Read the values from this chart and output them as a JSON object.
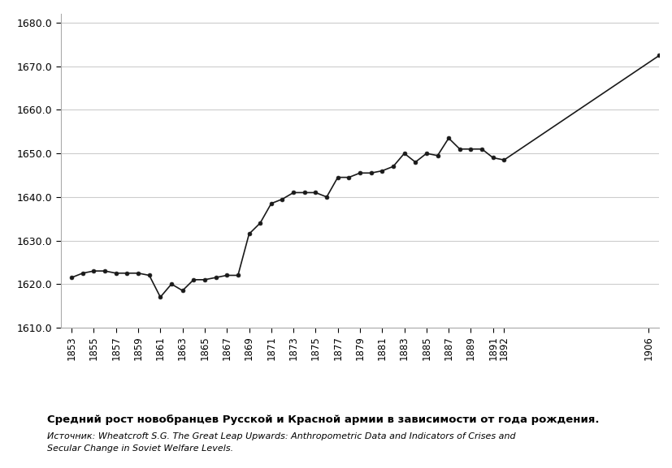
{
  "years": [
    1853,
    1854,
    1855,
    1856,
    1857,
    1858,
    1859,
    1860,
    1861,
    1862,
    1863,
    1864,
    1865,
    1866,
    1867,
    1868,
    1869,
    1870,
    1871,
    1872,
    1873,
    1874,
    1875,
    1876,
    1877,
    1878,
    1879,
    1880,
    1881,
    1882,
    1883,
    1884,
    1885,
    1886,
    1887,
    1888,
    1889,
    1890,
    1891,
    1892,
    1906
  ],
  "heights": [
    1621.5,
    1622.5,
    1623.0,
    1623.0,
    1622.5,
    1622.5,
    1622.5,
    1622.0,
    1617.0,
    1620.0,
    1618.5,
    1621.0,
    1621.0,
    1621.5,
    1622.0,
    1622.0,
    1631.5,
    1634.0,
    1638.5,
    1639.5,
    1641.0,
    1641.0,
    1641.0,
    1640.0,
    1644.5,
    1644.5,
    1645.5,
    1645.5,
    1646.0,
    1647.0,
    1650.0,
    1648.0,
    1650.0,
    1649.5,
    1653.5,
    1651.0,
    1651.0,
    1651.0,
    1649.0,
    1648.5,
    1672.5
  ],
  "xtick_labels": [
    "1853",
    "1855",
    "1857",
    "1859",
    "1861",
    "1863",
    "1865",
    "1867",
    "1869",
    "1871",
    "1873",
    "1875",
    "1877",
    "1879",
    "1881",
    "1883",
    "1885",
    "1887",
    "1889",
    "1891",
    "1892",
    "1906"
  ],
  "xtick_positions": [
    0,
    2,
    4,
    6,
    8,
    10,
    12,
    14,
    16,
    18,
    20,
    22,
    24,
    26,
    28,
    30,
    32,
    34,
    36,
    38,
    39,
    52
  ],
  "ylim": [
    1610.0,
    1682.0
  ],
  "yticks": [
    1610.0,
    1620.0,
    1630.0,
    1640.0,
    1650.0,
    1660.0,
    1670.0,
    1680.0
  ],
  "xlim": [
    -1,
    53
  ],
  "title": "Средний рост новобранцев Русской и Красной армии в зависимости от года рождения.",
  "source_line1": "Источник: Wheatcroft S.G. The Great Leap Upwards: Anthropometric Data and Indicators of Crises and",
  "source_line2": "Secular Change in Soviet Welfare Levels.",
  "line_color": "#1a1a1a",
  "marker_color": "#1a1a1a",
  "bg_color": "#ffffff",
  "grid_color": "#cccccc"
}
